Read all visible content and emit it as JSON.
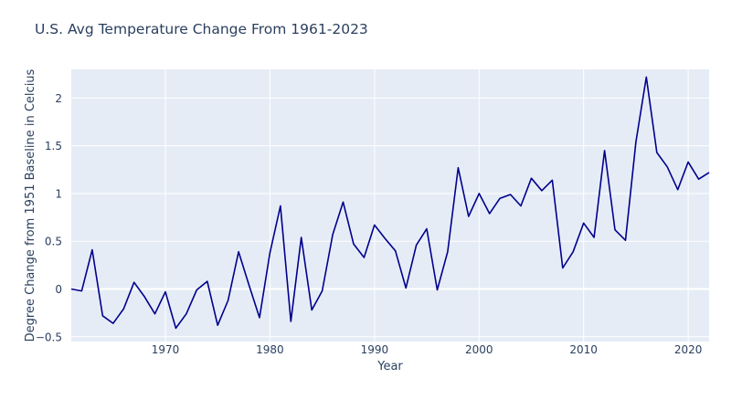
{
  "chart_data": {
    "type": "line",
    "title": "U.S. Avg Temperature Change From 1961-2023",
    "xlabel": "Year",
    "ylabel": "Degree Change from 1951 Baseline in Celcius",
    "xlim": [
      1961,
      2022
    ],
    "ylim": [
      -0.55,
      2.3
    ],
    "x_ticks": [
      1970,
      1980,
      1990,
      2000,
      2010,
      2020
    ],
    "y_ticks": [
      -0.5,
      0,
      0.5,
      1,
      1.5,
      2
    ],
    "x_tick_labels": [
      "1970",
      "1980",
      "1990",
      "2000",
      "2010",
      "2020"
    ],
    "y_tick_labels": [
      "−0.5",
      "0",
      "0.5",
      "1",
      "1.5",
      "2"
    ],
    "grid": true,
    "legend": "none",
    "series": [
      {
        "color": "#00008b",
        "x": [
          1961,
          1962,
          1963,
          1964,
          1965,
          1966,
          1967,
          1968,
          1969,
          1970,
          1971,
          1972,
          1973,
          1974,
          1975,
          1976,
          1977,
          1978,
          1979,
          1980,
          1981,
          1982,
          1983,
          1984,
          1985,
          1986,
          1987,
          1988,
          1989,
          1990,
          1991,
          1992,
          1993,
          1994,
          1995,
          1996,
          1997,
          1998,
          1999,
          2000,
          2001,
          2002,
          2003,
          2004,
          2005,
          2006,
          2007,
          2008,
          2009,
          2010,
          2011,
          2012,
          2013,
          2014,
          2015,
          2016,
          2017,
          2018,
          2019,
          2020,
          2021,
          2022
        ],
        "y": [
          0.0,
          -0.02,
          0.41,
          -0.28,
          -0.36,
          -0.21,
          0.07,
          -0.08,
          -0.26,
          -0.03,
          -0.41,
          -0.26,
          -0.01,
          0.08,
          -0.38,
          -0.12,
          0.39,
          0.04,
          -0.3,
          0.38,
          0.87,
          -0.34,
          0.54,
          -0.22,
          -0.02,
          0.57,
          0.91,
          0.47,
          0.33,
          0.67,
          0.53,
          0.4,
          0.01,
          0.46,
          0.63,
          -0.01,
          0.39,
          1.27,
          0.76,
          1.0,
          0.79,
          0.95,
          0.99,
          0.87,
          1.16,
          1.03,
          1.14,
          0.22,
          0.39,
          0.69,
          0.54,
          1.45,
          0.62,
          0.51,
          1.54,
          2.22,
          1.43,
          1.28,
          1.04,
          1.33,
          1.15,
          1.22
        ]
      }
    ]
  },
  "colors": {
    "plot_bg": "#e5ecf6",
    "grid": "#ffffff",
    "text": "#2a3f5f",
    "line": "#00008b"
  }
}
